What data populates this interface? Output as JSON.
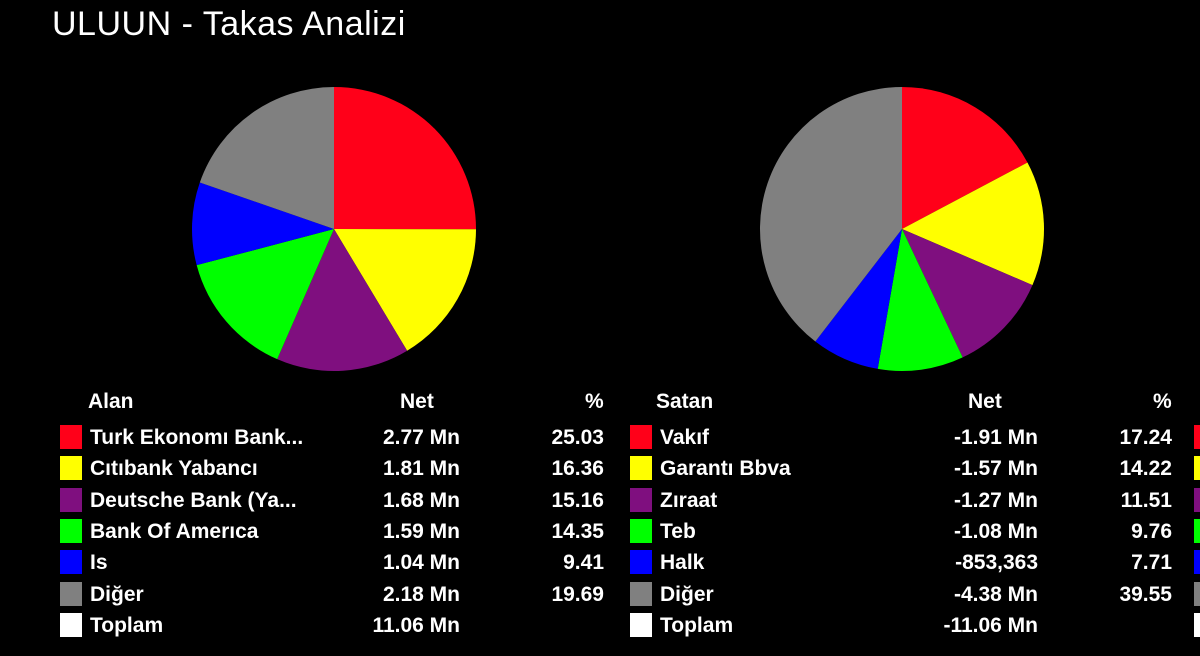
{
  "title": "ULUUN - Takas Analizi",
  "colors": {
    "red": "#ff0019",
    "yellow": "#ffff00",
    "purple": "#7f0f7f",
    "green": "#00ff00",
    "blue": "#0000ff",
    "gray": "#808080",
    "white": "#ffffff"
  },
  "left_table": {
    "headers": {
      "name": "Alan",
      "net": "Net",
      "pct": "%"
    },
    "rows": [
      {
        "name": "Turk Ekonomı Bank...",
        "net": "2.77 Mn",
        "pct": "25.03",
        "color": "#ff0019"
      },
      {
        "name": "Cıtıbank Yabancı",
        "net": "1.81 Mn",
        "pct": "16.36",
        "color": "#ffff00"
      },
      {
        "name": "Deutsche Bank (Ya...",
        "net": "1.68 Mn",
        "pct": "15.16",
        "color": "#7f0f7f"
      },
      {
        "name": "Bank Of Amerıca",
        "net": "1.59 Mn",
        "pct": "14.35",
        "color": "#00ff00"
      },
      {
        "name": "Is",
        "net": "1.04 Mn",
        "pct": "9.41",
        "color": "#0000ff"
      },
      {
        "name": "Diğer",
        "net": "2.18 Mn",
        "pct": "19.69",
        "color": "#808080"
      },
      {
        "name": "Toplam",
        "net": "11.06 Mn",
        "pct": "",
        "color": "#ffffff"
      }
    ]
  },
  "right_table": {
    "headers": {
      "name": "Satan",
      "net": "Net",
      "pct": "%"
    },
    "rows": [
      {
        "name": "Vakıf",
        "net": "-1.91 Mn",
        "pct": "17.24",
        "color": "#ff0019"
      },
      {
        "name": "Garantı Bbva",
        "net": "-1.57 Mn",
        "pct": "14.22",
        "color": "#ffff00"
      },
      {
        "name": "Zıraat",
        "net": "-1.27 Mn",
        "pct": "11.51",
        "color": "#7f0f7f"
      },
      {
        "name": "Teb",
        "net": "-1.08 Mn",
        "pct": "9.76",
        "color": "#00ff00"
      },
      {
        "name": "Halk",
        "net": "-853,363",
        "pct": "7.71",
        "color": "#0000ff"
      },
      {
        "name": "Diğer",
        "net": "-4.38 Mn",
        "pct": "39.55",
        "color": "#808080"
      },
      {
        "name": "Toplam",
        "net": "-11.06 Mn",
        "pct": "",
        "color": "#ffffff"
      }
    ]
  },
  "chart_data": [
    {
      "type": "pie",
      "title": "",
      "categories": [
        "Turk Ekonomı Bank...",
        "Cıtıbank Yabancı",
        "Deutsche Bank (Ya...",
        "Bank Of Amerıca",
        "Is",
        "Diğer"
      ],
      "values": [
        25.03,
        16.36,
        15.16,
        14.35,
        9.41,
        19.69
      ],
      "colors": [
        "#ff0019",
        "#ffff00",
        "#7f0f7f",
        "#00ff00",
        "#0000ff",
        "#808080"
      ],
      "start": "12 o'clock",
      "direction": "clockwise"
    },
    {
      "type": "pie",
      "title": "",
      "categories": [
        "Vakıf",
        "Garantı Bbva",
        "Zıraat",
        "Teb",
        "Halk",
        "Diğer"
      ],
      "values": [
        17.24,
        14.22,
        11.51,
        9.76,
        7.71,
        39.55
      ],
      "colors": [
        "#ff0019",
        "#ffff00",
        "#7f0f7f",
        "#00ff00",
        "#0000ff",
        "#808080"
      ],
      "start": "12 o'clock",
      "direction": "clockwise"
    }
  ]
}
